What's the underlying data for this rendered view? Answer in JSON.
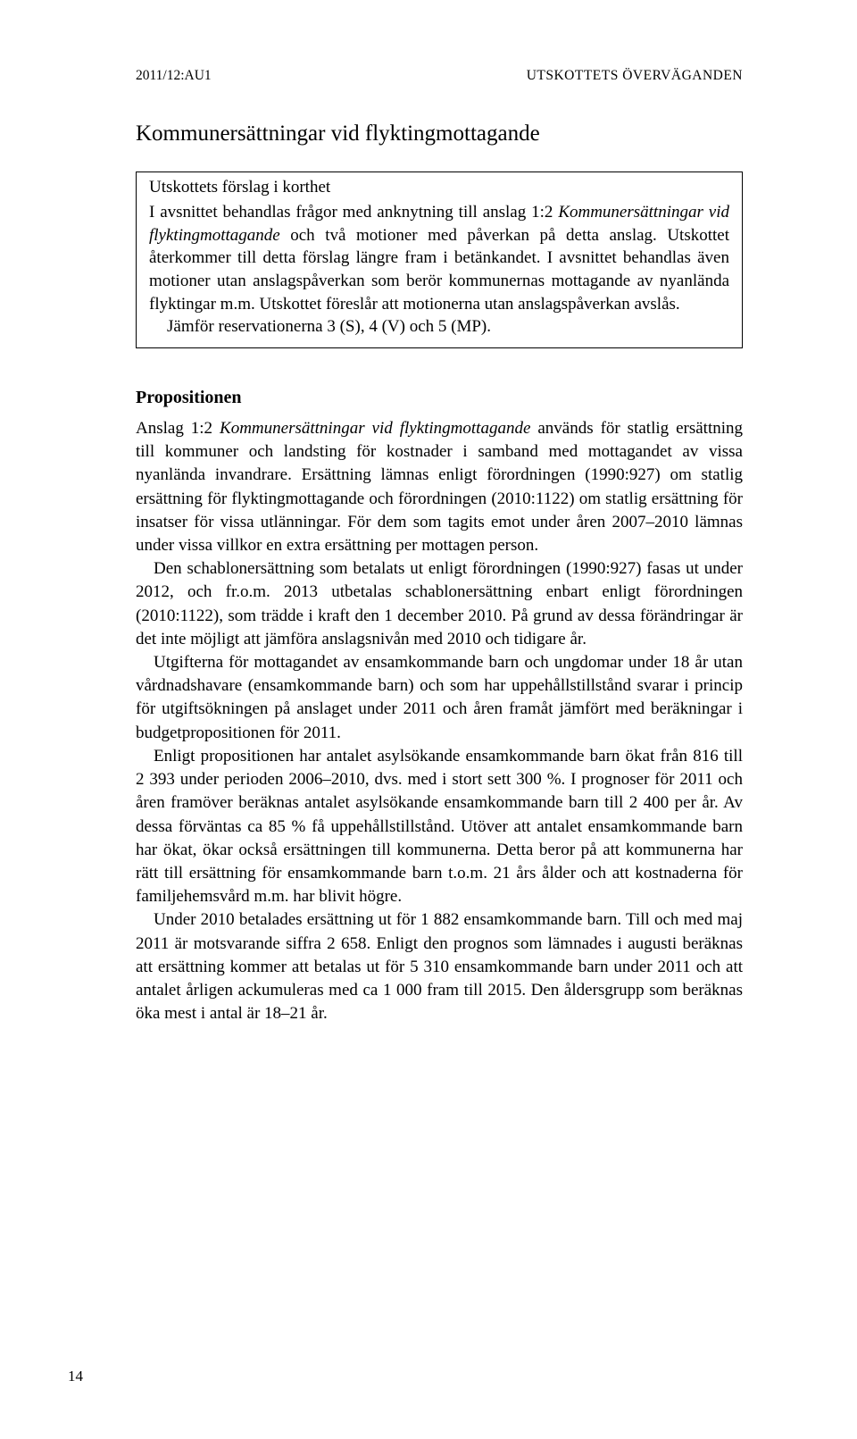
{
  "header": {
    "doc_id": "2011/12:AU1",
    "section_label": "UTSKOTTETS ÖVERVÄGANDEN"
  },
  "title": "Kommunersättningar vid flyktingmottagande",
  "box": {
    "subtitle": "Utskottets förslag i korthet",
    "p1_pre": "I avsnittet behandlas frågor med anknytning till anslag 1:2 ",
    "p1_ital": "Kommunersättningar vid flyktingmottagande",
    "p1_post": " och två motioner med påverkan på detta anslag. Utskottet återkommer till detta förslag längre fram i betänkandet. I avsnittet behandlas även motioner utan anslagspåverkan som berör kommunernas mottagande av nyanlända flyktingar m.m. Utskottet föreslår att motionerna utan anslagspåverkan avslås.",
    "p2": "Jämför reservationerna 3 (S), 4 (V) och 5 (MP)."
  },
  "section_heading": "Propositionen",
  "body": {
    "p1_pre": "Anslag 1:2 ",
    "p1_ital": "Kommunersättningar vid flyktingmottagande",
    "p1_post": " används för statlig ersättning till kommuner och landsting för kostnader i samband med mottagandet av vissa nyanlända invandrare. Ersättning lämnas enligt förordningen (1990:927) om statlig ersättning för flyktingmottagande och förordningen (2010:1122) om statlig ersättning för insatser för vissa utlänningar. För dem som tagits emot under åren 2007–2010 lämnas under vissa villkor en extra ersättning per mottagen person.",
    "p2": "Den schablonersättning som betalats ut enligt förordningen (1990:927) fasas ut under 2012, och fr.o.m. 2013 utbetalas schablonersättning enbart enligt förordningen (2010:1122), som trädde i kraft den 1 december 2010. På grund av dessa förändringar är det inte möjligt att jämföra anslagsnivån med 2010 och tidigare år.",
    "p3": "Utgifterna för mottagandet av ensamkommande barn och ungdomar under 18 år utan vårdnadshavare (ensamkommande barn) och som har uppehållstillstånd svarar i princip för utgiftsökningen på anslaget under 2011 och åren framåt jämfört med beräkningar i budgetpropositionen för 2011.",
    "p4": "Enligt propositionen har antalet asylsökande ensamkommande barn ökat från 816 till 2 393 under perioden 2006–2010, dvs. med i stort sett 300 %. I prognoser för 2011 och åren framöver beräknas antalet asylsökande ensamkommande barn till 2 400 per år. Av dessa förväntas ca 85 % få uppehållstillstånd. Utöver att antalet ensamkommande barn har ökat, ökar också ersättningen till kommunerna. Detta beror på att kommunerna har rätt till ersättning för ensamkommande barn t.o.m. 21 års ålder och att kostnaderna för familjehemsvård m.m. har blivit högre.",
    "p5": "Under 2010 betalades ersättning ut för 1 882 ensamkommande barn. Till och med maj 2011 är motsvarande siffra 2 658. Enligt den prognos som lämnades i augusti beräknas att ersättning kommer att betalas ut för 5 310 ensamkommande barn under 2011 och att antalet årligen ackumuleras med ca 1 000 fram till 2015. Den åldersgrupp som beräknas öka mest i antal är 18–21 år."
  },
  "page_number": "14"
}
